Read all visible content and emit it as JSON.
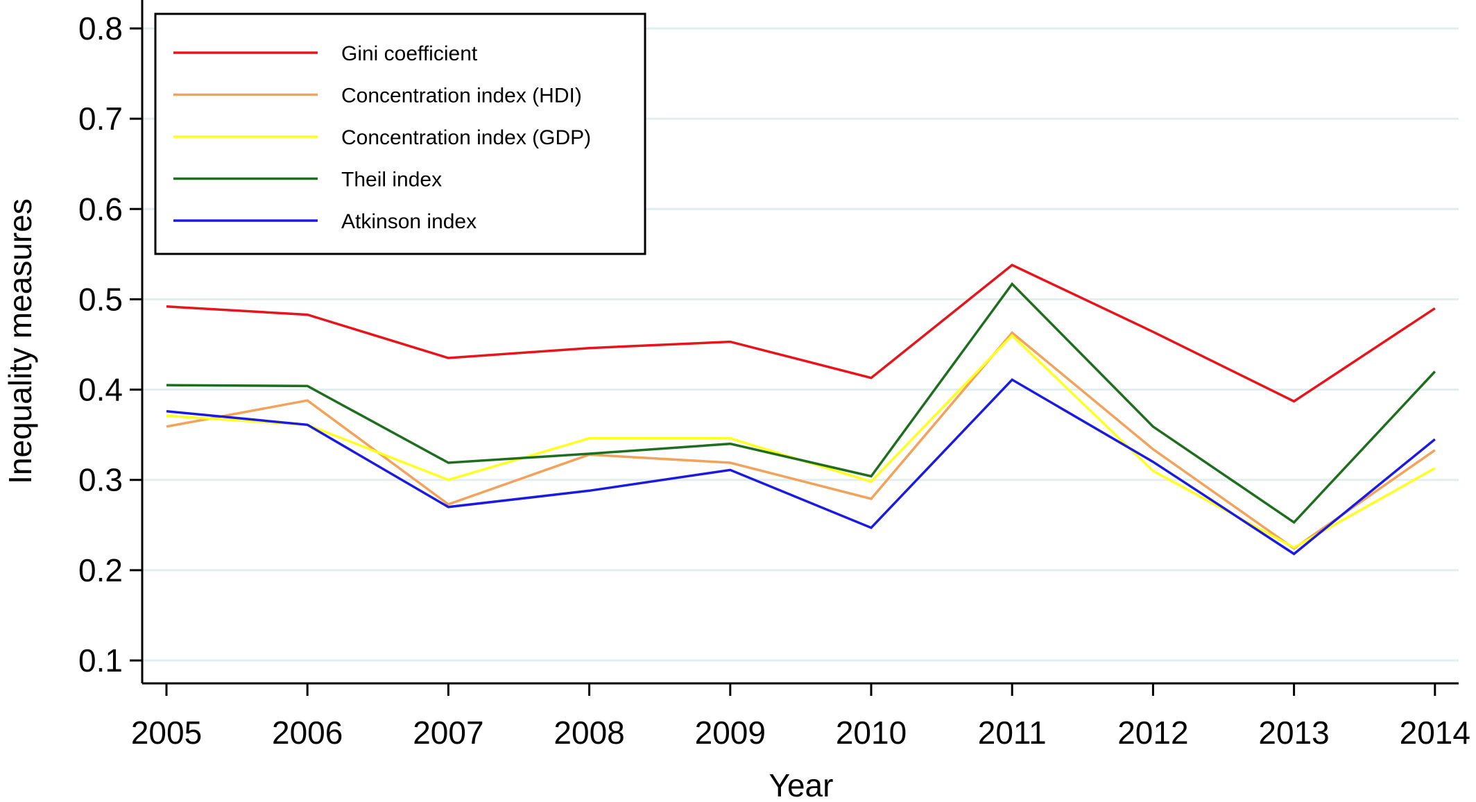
{
  "chart_data": {
    "type": "line",
    "title": "",
    "xlabel": "Year",
    "ylabel": "Inequality measures",
    "x": [
      "2005",
      "2006",
      "2007",
      "2008",
      "2009",
      "2010",
      "2011",
      "2012",
      "2013",
      "2014"
    ],
    "ylim": [
      0.075,
      0.82
    ],
    "yticks": [
      "0.1",
      "0.2",
      "0.3",
      "0.4",
      "0.5",
      "0.6",
      "0.7",
      "0.8"
    ],
    "grid": "horizontal",
    "legend_position": "top-left",
    "series": [
      {
        "name": "Gini coefficient",
        "color": "#e8141c",
        "values": [
          0.492,
          0.483,
          0.435,
          0.446,
          0.453,
          0.413,
          0.538,
          0.464,
          0.387,
          0.49
        ]
      },
      {
        "name": "Concentration index (HDI)",
        "color": "#f2a25a",
        "values": [
          0.359,
          0.388,
          0.273,
          0.328,
          0.319,
          0.279,
          0.463,
          0.334,
          0.224,
          0.333
        ]
      },
      {
        "name": "Concentration index (GDP)",
        "color": "#ffff20",
        "values": [
          0.371,
          0.361,
          0.3,
          0.346,
          0.346,
          0.298,
          0.46,
          0.31,
          0.225,
          0.313
        ]
      },
      {
        "name": "Theil index",
        "color": "#1f6e1f",
        "values": [
          0.405,
          0.404,
          0.319,
          0.329,
          0.34,
          0.304,
          0.517,
          0.359,
          0.253,
          0.42
        ]
      },
      {
        "name": "Atkinson index",
        "color": "#1a1ae0",
        "values": [
          0.376,
          0.361,
          0.27,
          0.288,
          0.311,
          0.247,
          0.411,
          0.32,
          0.218,
          0.345
        ]
      }
    ]
  }
}
